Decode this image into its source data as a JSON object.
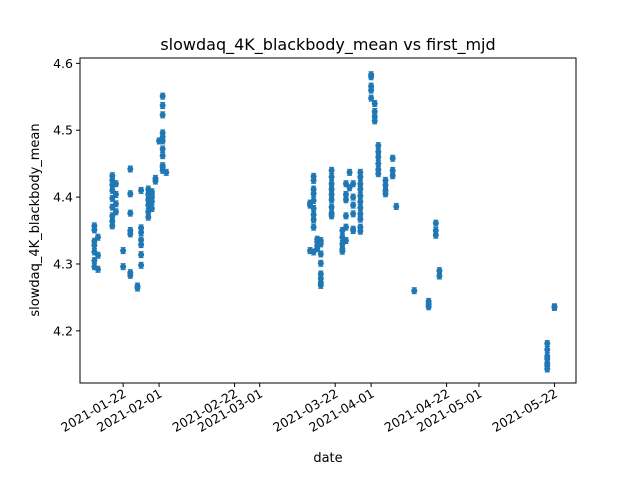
{
  "chart_data": {
    "type": "scatter",
    "title": "slowdaq_4K_blackbody_mean vs first_mjd",
    "xlabel": "date",
    "ylabel": "slowdaq_4K_blackbody_mean",
    "xlim": [
      "2021-01-10",
      "2021-05-28"
    ],
    "ylim": [
      4.122,
      4.608
    ],
    "grid": false,
    "marker_color": "#1f77b4",
    "x_ticks": [
      "2021-01-22",
      "2021-02-01",
      "2021-02-22",
      "2021-03-01",
      "2021-03-22",
      "2021-04-01",
      "2021-04-22",
      "2021-05-01",
      "2021-05-22"
    ],
    "y_ticks": [
      "4.2",
      "4.3",
      "4.4",
      "4.5",
      "4.6"
    ],
    "series": [
      {
        "points": [
          [
            "2021-01-14",
            4.357
          ],
          [
            "2021-01-14",
            4.351
          ],
          [
            "2021-01-14",
            4.334
          ],
          [
            "2021-01-14",
            4.328
          ],
          [
            "2021-01-14",
            4.318
          ],
          [
            "2021-01-14",
            4.305
          ],
          [
            "2021-01-14",
            4.296
          ],
          [
            "2021-01-15",
            4.34
          ],
          [
            "2021-01-15",
            4.313
          ],
          [
            "2021-01-15",
            4.292
          ],
          [
            "2021-01-19",
            4.432
          ],
          [
            "2021-01-19",
            4.425
          ],
          [
            "2021-01-19",
            4.418
          ],
          [
            "2021-01-19",
            4.41
          ],
          [
            "2021-01-19",
            4.398
          ],
          [
            "2021-01-19",
            4.385
          ],
          [
            "2021-01-19",
            4.372
          ],
          [
            "2021-01-19",
            4.364
          ],
          [
            "2021-01-19",
            4.357
          ],
          [
            "2021-01-20",
            4.42
          ],
          [
            "2021-01-20",
            4.404
          ],
          [
            "2021-01-20",
            4.39
          ],
          [
            "2021-01-20",
            4.378
          ],
          [
            "2021-01-22",
            4.32
          ],
          [
            "2021-01-22",
            4.296
          ],
          [
            "2021-01-24",
            4.442
          ],
          [
            "2021-01-24",
            4.405
          ],
          [
            "2021-01-24",
            4.376
          ],
          [
            "2021-01-24",
            4.35
          ],
          [
            "2021-01-24",
            4.345
          ],
          [
            "2021-01-24",
            4.287
          ],
          [
            "2021-01-24",
            4.283
          ],
          [
            "2021-01-26",
            4.267
          ],
          [
            "2021-01-26",
            4.264
          ],
          [
            "2021-01-27",
            4.41
          ],
          [
            "2021-01-27",
            4.354
          ],
          [
            "2021-01-27",
            4.347
          ],
          [
            "2021-01-27",
            4.336
          ],
          [
            "2021-01-27",
            4.329
          ],
          [
            "2021-01-27",
            4.314
          ],
          [
            "2021-01-27",
            4.298
          ],
          [
            "2021-01-29",
            4.412
          ],
          [
            "2021-01-29",
            4.404
          ],
          [
            "2021-01-29",
            4.396
          ],
          [
            "2021-01-29",
            4.388
          ],
          [
            "2021-01-29",
            4.378
          ],
          [
            "2021-01-29",
            4.37
          ],
          [
            "2021-01-30",
            4.408
          ],
          [
            "2021-01-30",
            4.4
          ],
          [
            "2021-01-30",
            4.393
          ],
          [
            "2021-01-30",
            4.383
          ],
          [
            "2021-01-30",
            4.404
          ],
          [
            "2021-01-31",
            4.428
          ],
          [
            "2021-01-31",
            4.424
          ],
          [
            "2021-02-02",
            4.551
          ],
          [
            "2021-02-02",
            4.537
          ],
          [
            "2021-02-02",
            4.523
          ],
          [
            "2021-02-02",
            4.496
          ],
          [
            "2021-02-02",
            4.49
          ],
          [
            "2021-02-02",
            4.484
          ],
          [
            "2021-02-02",
            4.472
          ],
          [
            "2021-02-02",
            4.462
          ],
          [
            "2021-02-02",
            4.447
          ],
          [
            "2021-02-02",
            4.445
          ],
          [
            "2021-02-02",
            4.44
          ],
          [
            "2021-02-01",
            4.484
          ],
          [
            "2021-02-03",
            4.437
          ],
          [
            "2021-03-15",
            4.391
          ],
          [
            "2021-03-15",
            4.388
          ],
          [
            "2021-03-15",
            4.32
          ],
          [
            "2021-03-16",
            4.431
          ],
          [
            "2021-03-16",
            4.425
          ],
          [
            "2021-03-16",
            4.412
          ],
          [
            "2021-03-16",
            4.405
          ],
          [
            "2021-03-16",
            4.395
          ],
          [
            "2021-03-16",
            4.383
          ],
          [
            "2021-03-16",
            4.374
          ],
          [
            "2021-03-16",
            4.366
          ],
          [
            "2021-03-16",
            4.355
          ],
          [
            "2021-03-16",
            4.318
          ],
          [
            "2021-03-17",
            4.337
          ],
          [
            "2021-03-17",
            4.333
          ],
          [
            "2021-03-17",
            4.327
          ],
          [
            "2021-03-17",
            4.323
          ],
          [
            "2021-03-18",
            4.335
          ],
          [
            "2021-03-18",
            4.33
          ],
          [
            "2021-03-18",
            4.315
          ],
          [
            "2021-03-18",
            4.301
          ],
          [
            "2021-03-18",
            4.285
          ],
          [
            "2021-03-18",
            4.278
          ],
          [
            "2021-03-18",
            4.272
          ],
          [
            "2021-03-18",
            4.268
          ],
          [
            "2021-03-21",
            4.44
          ],
          [
            "2021-03-21",
            4.43
          ],
          [
            "2021-03-21",
            4.42
          ],
          [
            "2021-03-21",
            4.412
          ],
          [
            "2021-03-21",
            4.404
          ],
          [
            "2021-03-21",
            4.396
          ],
          [
            "2021-03-21",
            4.385
          ],
          [
            "2021-03-21",
            4.376
          ],
          [
            "2021-03-21",
            4.372
          ],
          [
            "2021-03-24",
            4.35
          ],
          [
            "2021-03-24",
            4.34
          ],
          [
            "2021-03-24",
            4.33
          ],
          [
            "2021-03-24",
            4.322
          ],
          [
            "2021-03-24",
            4.319
          ],
          [
            "2021-03-25",
            4.42
          ],
          [
            "2021-03-25",
            4.404
          ],
          [
            "2021-03-25",
            4.396
          ],
          [
            "2021-03-25",
            4.372
          ],
          [
            "2021-03-25",
            4.355
          ],
          [
            "2021-03-25",
            4.335
          ],
          [
            "2021-03-26",
            4.437
          ],
          [
            "2021-03-26",
            4.414
          ],
          [
            "2021-03-27",
            4.42
          ],
          [
            "2021-03-27",
            4.4
          ],
          [
            "2021-03-27",
            4.388
          ],
          [
            "2021-03-27",
            4.375
          ],
          [
            "2021-03-27",
            4.352
          ],
          [
            "2021-03-27",
            4.35
          ],
          [
            "2021-03-29",
            4.437
          ],
          [
            "2021-03-29",
            4.43
          ],
          [
            "2021-03-29",
            4.42
          ],
          [
            "2021-03-29",
            4.412
          ],
          [
            "2021-03-29",
            4.402
          ],
          [
            "2021-03-29",
            4.393
          ],
          [
            "2021-03-29",
            4.384
          ],
          [
            "2021-03-29",
            4.375
          ],
          [
            "2021-03-29",
            4.367
          ],
          [
            "2021-03-29",
            4.355
          ],
          [
            "2021-03-29",
            4.349
          ],
          [
            "2021-04-01",
            4.583
          ],
          [
            "2021-04-01",
            4.58
          ],
          [
            "2021-04-01",
            4.566
          ],
          [
            "2021-04-01",
            4.56
          ],
          [
            "2021-04-01",
            4.548
          ],
          [
            "2021-04-02",
            4.54
          ],
          [
            "2021-04-02",
            4.528
          ],
          [
            "2021-04-02",
            4.52
          ],
          [
            "2021-04-02",
            4.514
          ],
          [
            "2021-04-03",
            4.477
          ],
          [
            "2021-04-03",
            4.468
          ],
          [
            "2021-04-03",
            4.46
          ],
          [
            "2021-04-03",
            4.45
          ],
          [
            "2021-04-03",
            4.441
          ],
          [
            "2021-04-03",
            4.435
          ],
          [
            "2021-04-05",
            4.425
          ],
          [
            "2021-04-05",
            4.418
          ],
          [
            "2021-04-05",
            4.41
          ],
          [
            "2021-04-05",
            4.405
          ],
          [
            "2021-04-07",
            4.458
          ],
          [
            "2021-04-07",
            4.44
          ],
          [
            "2021-04-07",
            4.432
          ],
          [
            "2021-04-08",
            4.386
          ],
          [
            "2021-04-13",
            4.26
          ],
          [
            "2021-04-17",
            4.244
          ],
          [
            "2021-04-17",
            4.24
          ],
          [
            "2021-04-17",
            4.236
          ],
          [
            "2021-04-19",
            4.361
          ],
          [
            "2021-04-19",
            4.35
          ],
          [
            "2021-04-19",
            4.343
          ],
          [
            "2021-04-20",
            4.29
          ],
          [
            "2021-04-20",
            4.282
          ],
          [
            "2021-05-20",
            4.181
          ],
          [
            "2021-05-20",
            4.172
          ],
          [
            "2021-05-20",
            4.162
          ],
          [
            "2021-05-20",
            4.158
          ],
          [
            "2021-05-20",
            4.152
          ],
          [
            "2021-05-20",
            4.148
          ],
          [
            "2021-05-20",
            4.143
          ],
          [
            "2021-05-22",
            4.236
          ],
          [
            "2021-05-22",
            4.235
          ]
        ]
      }
    ]
  }
}
